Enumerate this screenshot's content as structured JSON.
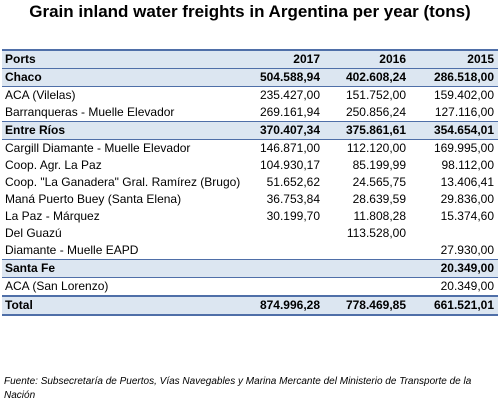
{
  "title": "Grain inland water freights in Argentina per year (tons)",
  "table": {
    "headers": [
      "Ports",
      "2017",
      "2016",
      "2015"
    ],
    "rows": [
      {
        "type": "group",
        "cells": [
          "Chaco",
          "504.588,94",
          "402.608,24",
          "286.518,00"
        ]
      },
      {
        "type": "row",
        "cells": [
          "ACA (Vilelas)",
          "235.427,00",
          "151.752,00",
          "159.402,00"
        ]
      },
      {
        "type": "row",
        "cells": [
          "Barranqueras - Muelle Elevador",
          "269.161,94",
          "250.856,24",
          "127.116,00"
        ]
      },
      {
        "type": "group",
        "cells": [
          "Entre Ríos",
          "370.407,34",
          "375.861,61",
          "354.654,01"
        ]
      },
      {
        "type": "row",
        "cells": [
          "Cargill Diamante - Muelle Elevador",
          "146.871,00",
          "112.120,00",
          "169.995,00"
        ]
      },
      {
        "type": "row",
        "cells": [
          "Coop. Agr. La Paz",
          "104.930,17",
          "85.199,99",
          "98.112,00"
        ]
      },
      {
        "type": "tall",
        "cells": [
          "Coop. \"La Ganadera\" Gral. Ramírez (Brugo)",
          "51.652,62",
          "24.565,75",
          "13.406,41"
        ]
      },
      {
        "type": "row",
        "cells": [
          "Maná Puerto Buey (Santa Elena)",
          "36.753,84",
          "28.639,59",
          "29.836,00"
        ]
      },
      {
        "type": "row",
        "cells": [
          "La Paz - Márquez",
          "30.199,70",
          "11.808,28",
          "15.374,60"
        ]
      },
      {
        "type": "row",
        "cells": [
          "Del Guazú",
          "",
          "113.528,00",
          ""
        ]
      },
      {
        "type": "row",
        "cells": [
          "Diamante - Muelle EAPD",
          "",
          "",
          "27.930,00"
        ]
      },
      {
        "type": "group",
        "cells": [
          "Santa Fe",
          "",
          "",
          "20.349,00"
        ]
      },
      {
        "type": "row",
        "cells": [
          "ACA (San Lorenzo)",
          "",
          "",
          "20.349,00"
        ]
      },
      {
        "type": "total",
        "cells": [
          "Total",
          "874.996,28",
          "778.469,85",
          "661.521,01"
        ]
      }
    ]
  },
  "source": "Fuente:  Subsecretaría de Puertos, Vías Navegables y Marina Mercante del Ministerio de Transporte de la Nación"
}
